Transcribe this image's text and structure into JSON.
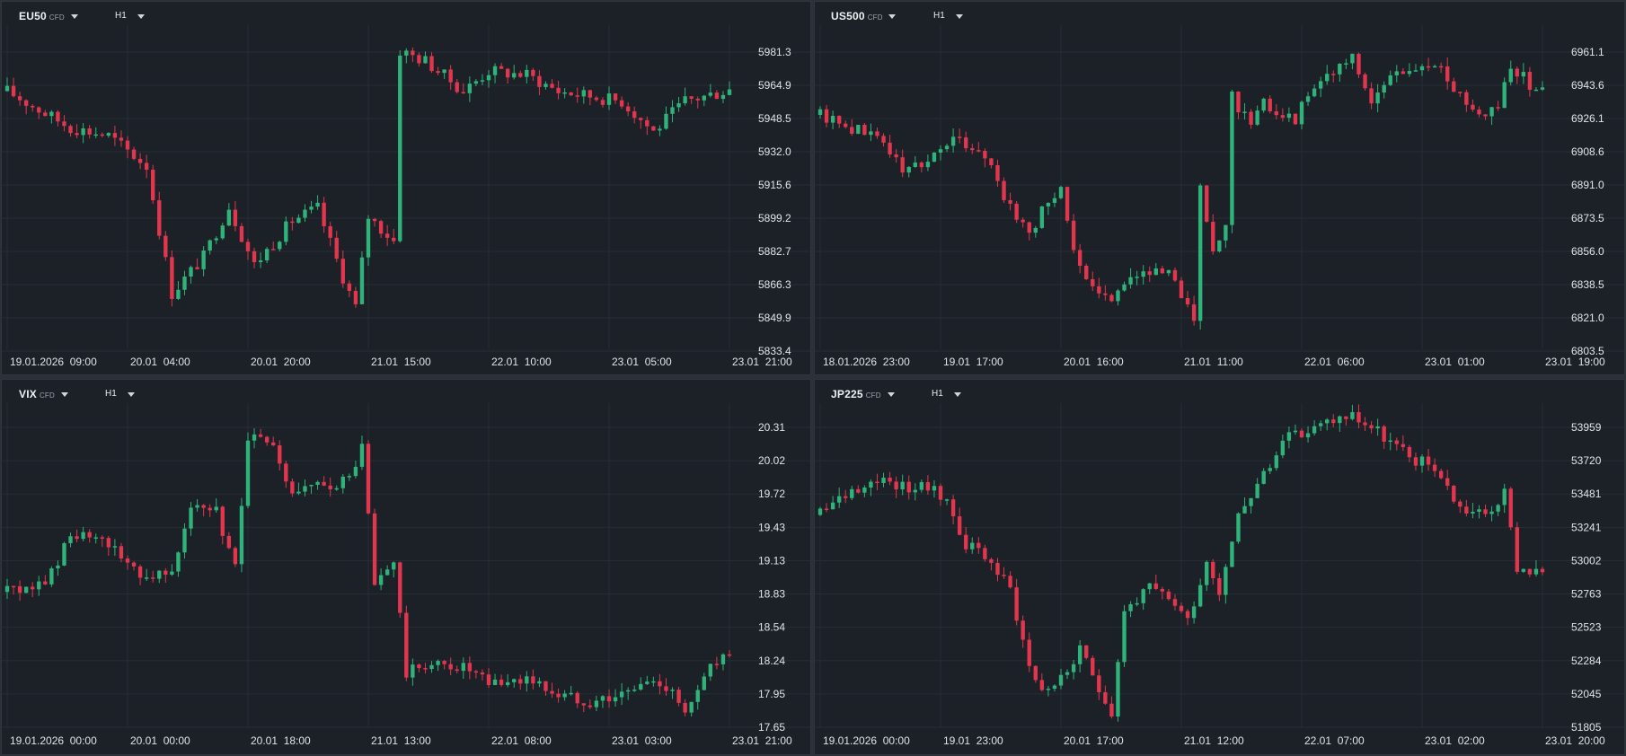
{
  "colors": {
    "up": "#2fb37b",
    "down": "#e2364f",
    "bg": "#1b2127",
    "grid": "#262d34",
    "text": "#dfe4e8"
  },
  "panels": [
    {
      "symbol": "EU50",
      "badge": "CFD",
      "timeframe": "H1"
    },
    {
      "symbol": "US500",
      "badge": "CFD",
      "timeframe": "H1"
    },
    {
      "symbol": "VIX",
      "badge": "CFD",
      "timeframe": "H1"
    },
    {
      "symbol": "JP225",
      "badge": "CFD",
      "timeframe": "H1"
    }
  ],
  "chart_data": [
    {
      "type": "candlestick",
      "symbol": "EU50",
      "ylim": [
        5833.4,
        5981.3
      ],
      "y_ticks": [
        "5981.3",
        "5964.9",
        "5948.5",
        "5932.0",
        "5915.6",
        "5899.2",
        "5882.7",
        "5866.3",
        "5849.9",
        "5833.4"
      ],
      "x_ticks": [
        "19.01.2026  09:00",
        "20.01  04:00",
        "20.01  20:00",
        "21.01  15:00",
        "22.01  10:00",
        "23.01  05:00",
        "23.01  21:00"
      ],
      "x_tick_pos": [
        0,
        19,
        38,
        57,
        76,
        95,
        114
      ],
      "n_points": 115,
      "knots": [
        [
          0,
          5962
        ],
        [
          6,
          5951
        ],
        [
          10,
          5944
        ],
        [
          16,
          5940
        ],
        [
          22,
          5925
        ],
        [
          26,
          5862
        ],
        [
          31,
          5880
        ],
        [
          35,
          5905
        ],
        [
          39,
          5876
        ],
        [
          45,
          5898
        ],
        [
          49,
          5904
        ],
        [
          53,
          5870
        ],
        [
          55,
          5855
        ],
        [
          57,
          5900
        ],
        [
          61,
          5888
        ],
        [
          62,
          5982
        ],
        [
          66,
          5977
        ],
        [
          72,
          5962
        ],
        [
          76,
          5972
        ],
        [
          82,
          5970
        ],
        [
          87,
          5962
        ],
        [
          97,
          5957
        ],
        [
          102,
          5942
        ],
        [
          107,
          5957
        ],
        [
          112,
          5961
        ],
        [
          114,
          5963
        ]
      ],
      "grid": true
    },
    {
      "type": "candlestick",
      "symbol": "US500",
      "ylim": [
        6803.5,
        6961.1
      ],
      "y_ticks": [
        "6961.1",
        "6943.6",
        "6926.1",
        "6908.6",
        "6891.0",
        "6873.5",
        "6856.0",
        "6838.5",
        "6821.0",
        "6803.5"
      ],
      "x_ticks": [
        "18.01.2026  23:00",
        "19.01  17:00",
        "20.01  16:00",
        "21.01  11:00",
        "22.01  06:00",
        "23.01  01:00",
        "23.01  19:00"
      ],
      "x_tick_pos": [
        0,
        19,
        38,
        57,
        76,
        95,
        114
      ],
      "n_points": 115,
      "knots": [
        [
          0,
          6928
        ],
        [
          6,
          6920
        ],
        [
          10,
          6915
        ],
        [
          13,
          6898
        ],
        [
          17,
          6905
        ],
        [
          21,
          6915
        ],
        [
          26,
          6908
        ],
        [
          30,
          6878
        ],
        [
          33,
          6866
        ],
        [
          38,
          6892
        ],
        [
          40,
          6856
        ],
        [
          42,
          6838
        ],
        [
          45,
          6830
        ],
        [
          50,
          6846
        ],
        [
          56,
          6842
        ],
        [
          59,
          6820
        ],
        [
          60,
          6888
        ],
        [
          62,
          6856
        ],
        [
          64,
          6868
        ],
        [
          65,
          6938
        ],
        [
          68,
          6922
        ],
        [
          70,
          6934
        ],
        [
          75,
          6926
        ],
        [
          78,
          6945
        ],
        [
          84,
          6957
        ],
        [
          87,
          6935
        ],
        [
          91,
          6951
        ],
        [
          97,
          6954
        ],
        [
          101,
          6940
        ],
        [
          104,
          6928
        ],
        [
          107,
          6933
        ],
        [
          109,
          6955
        ],
        [
          112,
          6944
        ],
        [
          114,
          6945
        ]
      ],
      "grid": true
    },
    {
      "type": "candlestick",
      "symbol": "VIX",
      "ylim": [
        17.65,
        20.31
      ],
      "y_ticks": [
        "20.31",
        "20.02",
        "19.72",
        "19.43",
        "19.13",
        "18.83",
        "18.54",
        "18.24",
        "17.95",
        "17.65"
      ],
      "x_ticks": [
        "19.01.2026  00:00",
        "20.01  00:00",
        "20.01  18:00",
        "21.01  13:00",
        "22.01  08:00",
        "23.01  03:00",
        "23.01  21:00"
      ],
      "x_tick_pos": [
        0,
        19,
        38,
        57,
        76,
        95,
        114
      ],
      "n_points": 115,
      "knots": [
        [
          0,
          18.85
        ],
        [
          6,
          18.92
        ],
        [
          10,
          19.35
        ],
        [
          13,
          19.32
        ],
        [
          17,
          19.22
        ],
        [
          22,
          18.98
        ],
        [
          26,
          19.08
        ],
        [
          29,
          19.6
        ],
        [
          33,
          19.55
        ],
        [
          36,
          19.05
        ],
        [
          38,
          20.25
        ],
        [
          42,
          20.1
        ],
        [
          45,
          19.72
        ],
        [
          50,
          19.78
        ],
        [
          54,
          19.85
        ],
        [
          56,
          20.13
        ],
        [
          58,
          18.9
        ],
        [
          61,
          19.12
        ],
        [
          63,
          18.12
        ],
        [
          66,
          18.2
        ],
        [
          72,
          18.18
        ],
        [
          76,
          18.02
        ],
        [
          82,
          18.08
        ],
        [
          87,
          17.93
        ],
        [
          92,
          17.88
        ],
        [
          97,
          17.93
        ],
        [
          101,
          18.05
        ],
        [
          105,
          18.0
        ],
        [
          107,
          17.75
        ],
        [
          109,
          17.93
        ],
        [
          111,
          18.25
        ]
      ],
      "grid": true
    },
    {
      "type": "candlestick",
      "symbol": "JP225",
      "ylim": [
        51805,
        53959
      ],
      "y_ticks": [
        "53959",
        "53720",
        "53481",
        "53241",
        "53002",
        "52763",
        "52523",
        "52284",
        "52045",
        "51805"
      ],
      "x_ticks": [
        "19.01.2026  00:00",
        "19.01  23:00",
        "20.01  17:00",
        "21.01  12:00",
        "22.01  07:00",
        "23.01  02:00",
        "23.01  20:00"
      ],
      "x_tick_pos": [
        0,
        19,
        38,
        57,
        76,
        95,
        114
      ],
      "n_points": 115,
      "knots": [
        [
          0,
          53330
        ],
        [
          5,
          53510
        ],
        [
          9,
          53600
        ],
        [
          13,
          53540
        ],
        [
          17,
          53520
        ],
        [
          20,
          53430
        ],
        [
          23,
          53120
        ],
        [
          26,
          53050
        ],
        [
          30,
          52800
        ],
        [
          33,
          52250
        ],
        [
          35,
          52080
        ],
        [
          38,
          52150
        ],
        [
          41,
          52350
        ],
        [
          44,
          52100
        ],
        [
          46,
          51920
        ],
        [
          48,
          52650
        ],
        [
          52,
          52800
        ],
        [
          56,
          52700
        ],
        [
          58,
          52580
        ],
        [
          61,
          53000
        ],
        [
          63,
          52800
        ],
        [
          66,
          53350
        ],
        [
          70,
          53620
        ],
        [
          74,
          53880
        ],
        [
          78,
          53950
        ],
        [
          81,
          54020
        ],
        [
          84,
          54050
        ],
        [
          88,
          53930
        ],
        [
          93,
          53740
        ],
        [
          97,
          53680
        ],
        [
          101,
          53380
        ],
        [
          105,
          53330
        ],
        [
          108,
          53480
        ],
        [
          110,
          52960
        ],
        [
          113,
          52920
        ]
      ],
      "grid": true
    }
  ]
}
